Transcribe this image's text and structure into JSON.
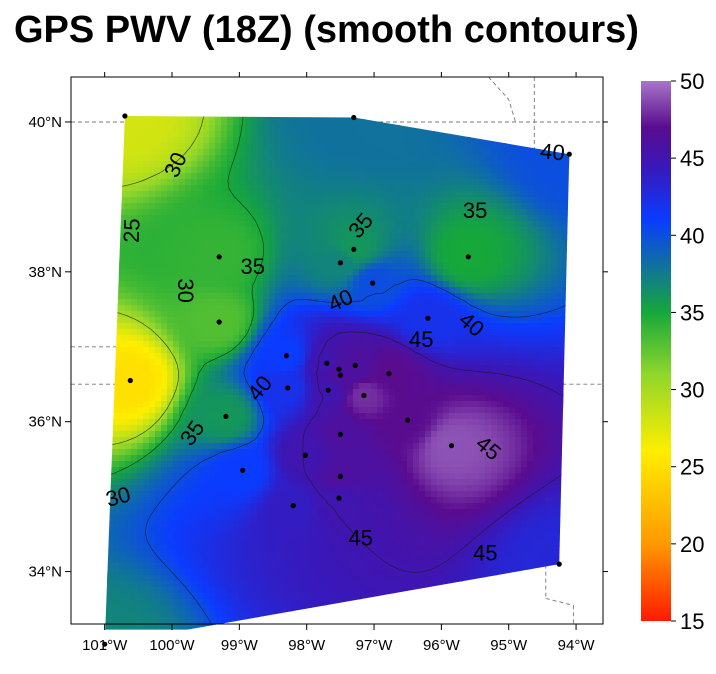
{
  "chart_data": {
    "type": "heatmap",
    "title": "GPS PWV (18Z) (smooth contours)",
    "xlabel": "",
    "ylabel": "",
    "xlim": [
      -101.5,
      -93.6
    ],
    "ylim": [
      33.3,
      40.6
    ],
    "x_ticks": [
      {
        "value": -101,
        "label": "101°W"
      },
      {
        "value": -100,
        "label": "100°W"
      },
      {
        "value": -99,
        "label": "99°W"
      },
      {
        "value": -98,
        "label": "98°W"
      },
      {
        "value": -97,
        "label": "97°W"
      },
      {
        "value": -96,
        "label": "96°W"
      },
      {
        "value": -95,
        "label": "95°W"
      },
      {
        "value": -94,
        "label": "94°W"
      }
    ],
    "y_ticks": [
      {
        "value": 34,
        "label": "34°N"
      },
      {
        "value": 36,
        "label": "36°N"
      },
      {
        "value": 38,
        "label": "38°N"
      },
      {
        "value": 40,
        "label": "40°N"
      }
    ],
    "colorbar": {
      "min": 15,
      "max": 50,
      "ticks": [
        {
          "value": 15,
          "label": "15"
        },
        {
          "value": 20,
          "label": "20"
        },
        {
          "value": 25,
          "label": "25"
        },
        {
          "value": 30,
          "label": "30"
        },
        {
          "value": 35,
          "label": "35"
        },
        {
          "value": 40,
          "label": "40"
        },
        {
          "value": 45,
          "label": "45"
        },
        {
          "value": 50,
          "label": "50"
        }
      ]
    },
    "stations": [
      {
        "lon": -100.7,
        "lat": 40.08,
        "pwv": 28
      },
      {
        "lon": -97.3,
        "lat": 40.06,
        "pwv": 38
      },
      {
        "lon": -94.1,
        "lat": 39.57,
        "pwv": 40
      },
      {
        "lon": -100.62,
        "lat": 36.55,
        "pwv": 25
      },
      {
        "lon": -101.0,
        "lat": 33.03,
        "pwv": 37
      },
      {
        "lon": -94.25,
        "lat": 34.1,
        "pwv": 43
      },
      {
        "lon": -99.3,
        "lat": 38.2,
        "pwv": 34
      },
      {
        "lon": -99.3,
        "lat": 37.33,
        "pwv": 33
      },
      {
        "lon": -99.2,
        "lat": 36.07,
        "pwv": 36
      },
      {
        "lon": -98.95,
        "lat": 35.35,
        "pwv": 41
      },
      {
        "lon": -98.3,
        "lat": 36.88,
        "pwv": 41
      },
      {
        "lon": -98.28,
        "lat": 36.45,
        "pwv": 42
      },
      {
        "lon": -98.02,
        "lat": 35.55,
        "pwv": 45
      },
      {
        "lon": -98.2,
        "lat": 34.88,
        "pwv": 44
      },
      {
        "lon": -97.7,
        "lat": 36.78,
        "pwv": 45
      },
      {
        "lon": -97.68,
        "lat": 36.42,
        "pwv": 45
      },
      {
        "lon": -97.52,
        "lat": 36.7,
        "pwv": 46
      },
      {
        "lon": -97.5,
        "lat": 36.62,
        "pwv": 46
      },
      {
        "lon": -97.5,
        "lat": 35.83,
        "pwv": 46
      },
      {
        "lon": -97.5,
        "lat": 35.27,
        "pwv": 46
      },
      {
        "lon": -97.52,
        "lat": 34.98,
        "pwv": 45
      },
      {
        "lon": -97.28,
        "lat": 36.75,
        "pwv": 46
      },
      {
        "lon": -97.15,
        "lat": 36.35,
        "pwv": 48
      },
      {
        "lon": -96.78,
        "lat": 36.64,
        "pwv": 47
      },
      {
        "lon": -96.5,
        "lat": 36.02,
        "pwv": 47
      },
      {
        "lon": -95.85,
        "lat": 35.68,
        "pwv": 49
      },
      {
        "lon": -97.5,
        "lat": 38.12,
        "pwv": 37
      },
      {
        "lon": -97.3,
        "lat": 38.3,
        "pwv": 36
      },
      {
        "lon": -97.02,
        "lat": 37.85,
        "pwv": 40
      },
      {
        "lon": -96.2,
        "lat": 37.38,
        "pwv": 42
      },
      {
        "lon": -95.6,
        "lat": 38.2,
        "pwv": 35
      }
    ],
    "contours": [
      {
        "level": 25,
        "label": "25",
        "lon": -100.6,
        "lat": 38.55,
        "angle": -88
      },
      {
        "level": 30,
        "label": "30",
        "lon": -99.95,
        "lat": 39.43,
        "angle": -65
      },
      {
        "level": 30,
        "label": "30",
        "lon": -99.8,
        "lat": 37.75,
        "angle": 90
      },
      {
        "level": 30,
        "label": "30",
        "lon": -100.8,
        "lat": 35.0,
        "angle": -15
      },
      {
        "level": 35,
        "label": "35",
        "lon": -98.8,
        "lat": 38.07,
        "angle": 0
      },
      {
        "level": 35,
        "label": "35",
        "lon": -97.2,
        "lat": 38.62,
        "angle": -50
      },
      {
        "level": 35,
        "label": "35",
        "lon": -95.5,
        "lat": 38.82,
        "angle": 0
      },
      {
        "level": 35,
        "label": "35",
        "lon": -99.7,
        "lat": 35.85,
        "angle": -55
      },
      {
        "level": 40,
        "label": "40",
        "lon": -94.35,
        "lat": 39.6,
        "angle": 5
      },
      {
        "level": 40,
        "label": "40",
        "lon": -97.5,
        "lat": 37.62,
        "angle": -25
      },
      {
        "level": 40,
        "label": "40",
        "lon": -95.55,
        "lat": 37.3,
        "angle": 40
      },
      {
        "level": 40,
        "label": "40",
        "lon": -98.7,
        "lat": 36.45,
        "angle": -50
      },
      {
        "level": 45,
        "label": "45",
        "lon": -96.3,
        "lat": 37.1,
        "angle": 0
      },
      {
        "level": 45,
        "label": "45",
        "lon": -95.3,
        "lat": 35.65,
        "angle": 40
      },
      {
        "level": 45,
        "label": "45",
        "lon": -97.2,
        "lat": 34.45,
        "angle": 0
      },
      {
        "level": 45,
        "label": "45",
        "lon": -95.35,
        "lat": 34.25,
        "angle": 0
      }
    ],
    "colors": {
      "ramp": [
        "#ff1a00",
        "#ff9900",
        "#ffee00",
        "#8fd62b",
        "#16a83a",
        "#0a3cff",
        "#3a17b8",
        "#5a0c8f",
        "#a776c8"
      ],
      "ramp_stops": [
        15,
        20,
        26,
        31,
        35,
        41,
        44.5,
        47,
        50
      ],
      "station": "#000000",
      "border": "#777777"
    }
  }
}
